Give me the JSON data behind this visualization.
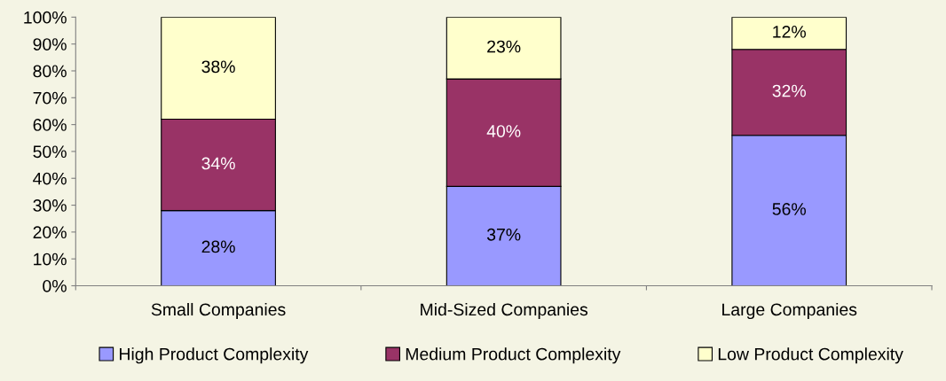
{
  "chart_data": {
    "type": "bar",
    "stacked": true,
    "categories": [
      "Small Companies",
      "Mid-Sized Companies",
      "Large Companies"
    ],
    "series": [
      {
        "name": "High Product Complexity",
        "color": "#9999ff",
        "values": [
          28,
          37,
          56
        ],
        "value_labels": [
          "28%",
          "37%",
          "56%"
        ]
      },
      {
        "name": "Medium Product Complexity",
        "color": "#993366",
        "values": [
          34,
          40,
          32
        ],
        "value_labels": [
          "34%",
          "40%",
          "32%"
        ]
      },
      {
        "name": "Low Product Complexity",
        "color": "#ffffcc",
        "values": [
          38,
          23,
          12
        ],
        "value_labels": [
          "38%",
          "23%",
          "12%"
        ]
      }
    ],
    "ylim": [
      0,
      100
    ],
    "yticks": [
      {
        "value": 0,
        "label": "0%"
      },
      {
        "value": 10,
        "label": "10%"
      },
      {
        "value": 20,
        "label": "20%"
      },
      {
        "value": 30,
        "label": "30%"
      },
      {
        "value": 40,
        "label": "40%"
      },
      {
        "value": 50,
        "label": "50%"
      },
      {
        "value": 60,
        "label": "60%"
      },
      {
        "value": 70,
        "label": "70%"
      },
      {
        "value": 80,
        "label": "80%"
      },
      {
        "value": 90,
        "label": "90%"
      },
      {
        "value": 100,
        "label": "100%"
      }
    ],
    "grid": false,
    "legend": "bottom"
  }
}
